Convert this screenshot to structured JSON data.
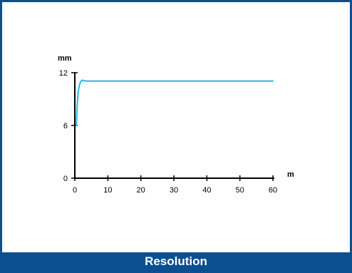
{
  "caption": "Resolution",
  "colors": {
    "frame": "#0b4f91",
    "line": "#29b6e6",
    "axis": "#000000"
  },
  "chart_data": {
    "type": "line",
    "title": "",
    "xlabel": "m",
    "ylabel": "mm",
    "xlim": [
      0,
      60
    ],
    "ylim": [
      0,
      12
    ],
    "x_ticks": [
      "0",
      "10",
      "20",
      "30",
      "40",
      "50",
      "60"
    ],
    "y_ticks": [
      "0",
      "6",
      "12"
    ],
    "grid": false,
    "series": [
      {
        "x": [
          0.5,
          0.7,
          1.0,
          1.4,
          1.8,
          2.2,
          2.7,
          3.5,
          5,
          10,
          20,
          30,
          40,
          50,
          60
        ],
        "y": [
          6.0,
          8.2,
          9.8,
          10.6,
          11.0,
          11.15,
          11.1,
          11.05,
          11.05,
          11.05,
          11.05,
          11.05,
          11.05,
          11.05,
          11.05
        ]
      }
    ]
  }
}
